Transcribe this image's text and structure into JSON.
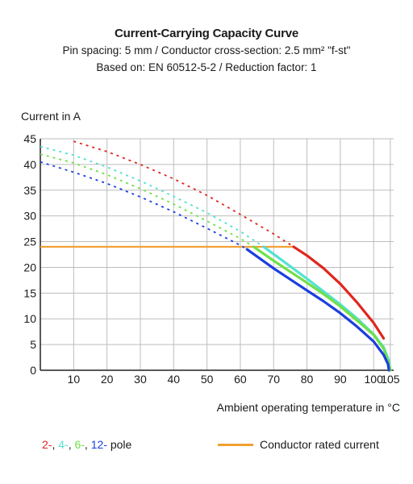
{
  "title": "Current-Carrying Capacity Curve",
  "subtitle_line1": "Pin spacing: 5 mm / Conductor cross-section: 2.5 mm² \"f-st\"",
  "subtitle_line2": "Based on: EN 60512-5-2 / Reduction factor: 1",
  "legend": {
    "poles": [
      {
        "text": "2-",
        "sep": ", ",
        "color": "#e0261f"
      },
      {
        "text": "4-",
        "sep": ", ",
        "color": "#56e0d2"
      },
      {
        "text": "6-",
        "sep": ", ",
        "color": "#6fe04a"
      },
      {
        "text": "12-",
        "sep": " ",
        "color": "#1b3ee0"
      }
    ],
    "poles_suffix": "pole",
    "rated_label": "Conductor rated current",
    "rated_color": "#f0a030"
  },
  "chart_data": {
    "type": "line",
    "title": "Current-Carrying Capacity Curve",
    "xlabel": "Ambient operating temperature in °C",
    "ylabel": "Current in A",
    "xlim": [
      0,
      106
    ],
    "ylim": [
      0,
      45
    ],
    "x_ticks": [
      10,
      20,
      30,
      40,
      50,
      60,
      70,
      80,
      90,
      100,
      105
    ],
    "y_ticks": [
      0,
      5,
      10,
      15,
      20,
      25,
      30,
      35,
      40,
      45
    ],
    "grid": true,
    "rated_current": {
      "value": 24,
      "x_range": [
        0,
        76
      ],
      "color": "#f0a030"
    },
    "series": [
      {
        "name": "2-pole",
        "color": "#e0261f",
        "dashed": [
          [
            10,
            44.5
          ],
          [
            20,
            42.5
          ],
          [
            30,
            40
          ],
          [
            40,
            37.2
          ],
          [
            50,
            34
          ],
          [
            60,
            30.3
          ],
          [
            70,
            26.5
          ],
          [
            76,
            24
          ]
        ],
        "solid": [
          [
            76,
            24
          ],
          [
            80,
            22.3
          ],
          [
            85,
            19.8
          ],
          [
            90,
            16.8
          ],
          [
            95,
            13.2
          ],
          [
            100,
            9.2
          ],
          [
            103,
            6.2
          ]
        ]
      },
      {
        "name": "4-pole",
        "color": "#56e0d2",
        "dashed": [
          [
            0,
            43.5
          ],
          [
            10,
            41.8
          ],
          [
            20,
            39.5
          ],
          [
            30,
            36.8
          ],
          [
            40,
            33.8
          ],
          [
            50,
            30.6
          ],
          [
            60,
            27
          ],
          [
            67,
            24
          ]
        ],
        "solid": [
          [
            67,
            24
          ],
          [
            75,
            20.2
          ],
          [
            80,
            17.8
          ],
          [
            85,
            15.3
          ],
          [
            90,
            12.8
          ],
          [
            95,
            10.1
          ],
          [
            100,
            7
          ],
          [
            103,
            4.5
          ],
          [
            104.5,
            2
          ],
          [
            105,
            0
          ]
        ]
      },
      {
        "name": "6-pole",
        "color": "#6fe04a",
        "dashed": [
          [
            0,
            42
          ],
          [
            10,
            40.3
          ],
          [
            20,
            38
          ],
          [
            30,
            35.3
          ],
          [
            40,
            32.3
          ],
          [
            50,
            29
          ],
          [
            60,
            25.6
          ],
          [
            64,
            24
          ]
        ],
        "solid": [
          [
            64,
            24
          ],
          [
            70,
            21.3
          ],
          [
            80,
            17
          ],
          [
            85,
            14.8
          ],
          [
            90,
            12.4
          ],
          [
            95,
            9.7
          ],
          [
            100,
            6.9
          ],
          [
            103,
            4.2
          ],
          [
            104.5,
            1.5
          ],
          [
            105,
            0
          ]
        ]
      },
      {
        "name": "12-pole",
        "color": "#1b3ee0",
        "dashed": [
          [
            0,
            40.5
          ],
          [
            10,
            38.5
          ],
          [
            20,
            36.3
          ],
          [
            30,
            33.7
          ],
          [
            40,
            30.8
          ],
          [
            50,
            27.6
          ],
          [
            60,
            24.3
          ],
          [
            62,
            23.5
          ]
        ],
        "solid": [
          [
            62,
            23.5
          ],
          [
            70,
            19.8
          ],
          [
            80,
            15.5
          ],
          [
            85,
            13.4
          ],
          [
            90,
            11.1
          ],
          [
            95,
            8.5
          ],
          [
            100,
            5.6
          ],
          [
            103,
            3
          ],
          [
            104.3,
            1.2
          ],
          [
            104.6,
            0
          ]
        ]
      }
    ]
  }
}
